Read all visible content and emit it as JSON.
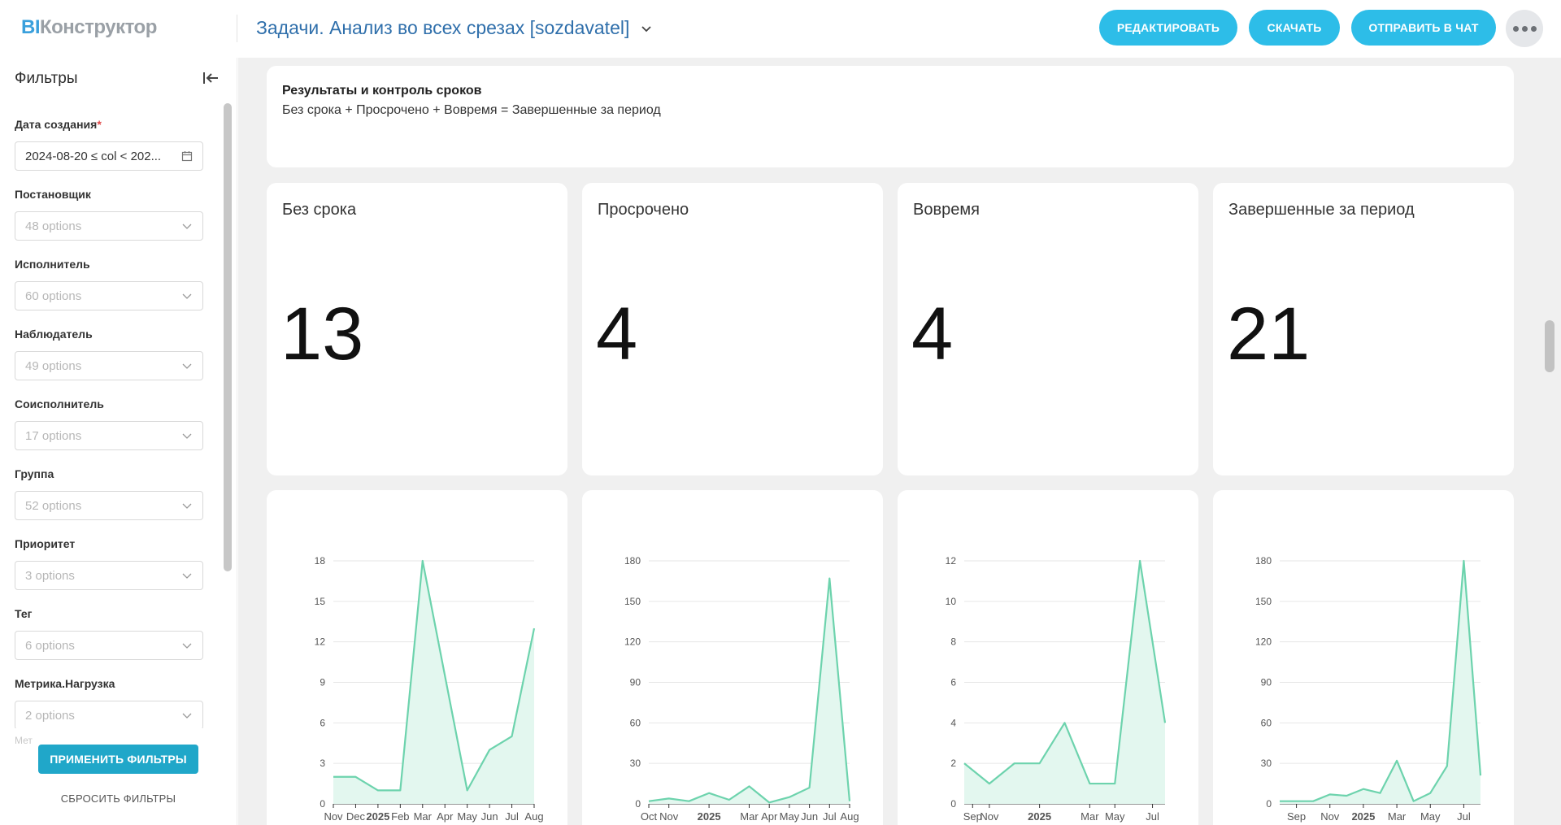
{
  "header": {
    "logo_bi": "BI",
    "logo_name": "Конструктор",
    "title": "Задачи. Анализ во всех срезах [sozdavatel]",
    "buttons": {
      "edit": "РЕДАКТИРОВАТЬ",
      "download": "СКАЧАТЬ",
      "send_chat": "ОТПРАВИТЬ В ЧАТ"
    }
  },
  "sidebar": {
    "title": "Фильтры",
    "date_filter": {
      "label": "Дата создания",
      "required_mark": "*",
      "value": "2024-08-20 ≤ col < 202..."
    },
    "filters": [
      {
        "label": "Постановщик",
        "placeholder": "48 options"
      },
      {
        "label": "Исполнитель",
        "placeholder": "60 options"
      },
      {
        "label": "Наблюдатель",
        "placeholder": "49 options"
      },
      {
        "label": "Соисполнитель",
        "placeholder": "17 options"
      },
      {
        "label": "Группа",
        "placeholder": "52 options"
      },
      {
        "label": "Приоритет",
        "placeholder": "3 options"
      },
      {
        "label": "Тег",
        "placeholder": "6 options"
      },
      {
        "label": "Метрика.Нагрузка",
        "placeholder": "2 options"
      }
    ],
    "cut_label": "Мет",
    "apply": "ПРИМЕНИТЬ ФИЛЬТРЫ",
    "reset": "СБРОСИТЬ ФИЛЬТРЫ"
  },
  "text_card": {
    "title": "Результаты и контроль сроков",
    "subtitle": "Без срока + Просрочено + Вовремя = Завершенные за период"
  },
  "kpis": [
    {
      "title": "Без срока",
      "value": "13"
    },
    {
      "title": "Просрочено",
      "value": "4"
    },
    {
      "title": "Вовремя",
      "value": "4"
    },
    {
      "title": "Завершенные за период",
      "value": "21"
    }
  ],
  "colors": {
    "accent": "#2dbde8",
    "apply": "#20a7c9",
    "series_line": "#6dd3ad",
    "series_fill": "#e3f7ef"
  },
  "chart_data": [
    {
      "type": "area",
      "ylim": [
        0,
        18
      ],
      "yticks": [
        0,
        3,
        6,
        9,
        12,
        15,
        18
      ],
      "x": [
        "2024-11",
        "2024-12",
        "2025-01",
        "2025-02",
        "2025-03",
        "2025-05",
        "2025-06",
        "2025-07",
        "2025-08"
      ],
      "xtick_labels": [
        "Nov",
        "Dec",
        "2025",
        "Feb",
        "Mar",
        "Apr",
        "May",
        "Jun",
        "Jul",
        "Aug"
      ],
      "xtick_dates": [
        "2024-11",
        "2024-12",
        "2025-01",
        "2025-02",
        "2025-03",
        "2025-04",
        "2025-05",
        "2025-06",
        "2025-07",
        "2025-08"
      ],
      "bold_ticks": [
        "2025"
      ],
      "values": [
        2,
        2,
        1,
        1,
        18,
        1,
        4,
        5,
        13
      ]
    },
    {
      "type": "area",
      "ylim": [
        0,
        180
      ],
      "yticks": [
        0,
        30,
        60,
        90,
        120,
        150,
        180
      ],
      "x": [
        "2024-10",
        "2024-11",
        "2024-12",
        "2025-01",
        "2025-02",
        "2025-03",
        "2025-04",
        "2025-05",
        "2025-06",
        "2025-07",
        "2025-08"
      ],
      "xtick_labels": [
        "Oct",
        "Nov",
        "2025",
        "Mar",
        "Apr",
        "May",
        "Jun",
        "Jul",
        "Aug"
      ],
      "xtick_dates": [
        "2024-10",
        "2024-11",
        "2025-01",
        "2025-03",
        "2025-04",
        "2025-05",
        "2025-06",
        "2025-07",
        "2025-08"
      ],
      "bold_ticks": [
        "2025"
      ],
      "values": [
        2,
        4,
        2,
        8,
        3,
        13,
        1,
        5,
        12,
        167,
        2
      ]
    },
    {
      "type": "area",
      "ylim": [
        0,
        12
      ],
      "yticks": [
        0,
        2,
        4,
        6,
        8,
        10,
        12
      ],
      "scale": "piecewise",
      "x": [
        "2024-08",
        "2024-11",
        "2024-12",
        "2025-01",
        "2025-02",
        "2025-03",
        "2025-05",
        "2025-06",
        "2025-08"
      ],
      "xtick_labels": [
        "Sep",
        "Nov",
        "2025",
        "Mar",
        "May",
        "Jul"
      ],
      "xtick_dates": [
        "2024-09",
        "2024-11",
        "2025-01",
        "2025-03",
        "2025-05",
        "2025-07"
      ],
      "bold_ticks": [
        "2025"
      ],
      "values": [
        2,
        1,
        2,
        2,
        4,
        1,
        1,
        12,
        4
      ]
    },
    {
      "type": "area",
      "ylim": [
        0,
        180
      ],
      "yticks": [
        0,
        30,
        60,
        90,
        120,
        150,
        180
      ],
      "x": [
        "2024-08",
        "2024-09",
        "2024-10",
        "2024-11",
        "2024-12",
        "2025-01",
        "2025-02",
        "2025-03",
        "2025-04",
        "2025-05",
        "2025-06",
        "2025-07",
        "2025-08"
      ],
      "xtick_labels": [
        "Sep",
        "Nov",
        "2025",
        "Mar",
        "May",
        "Jul"
      ],
      "xtick_dates": [
        "2024-09",
        "2024-11",
        "2025-01",
        "2025-03",
        "2025-05",
        "2025-07"
      ],
      "bold_ticks": [
        "2025"
      ],
      "values": [
        2,
        2,
        2,
        7,
        6,
        11,
        8,
        32,
        2,
        8,
        28,
        180,
        21
      ]
    }
  ]
}
